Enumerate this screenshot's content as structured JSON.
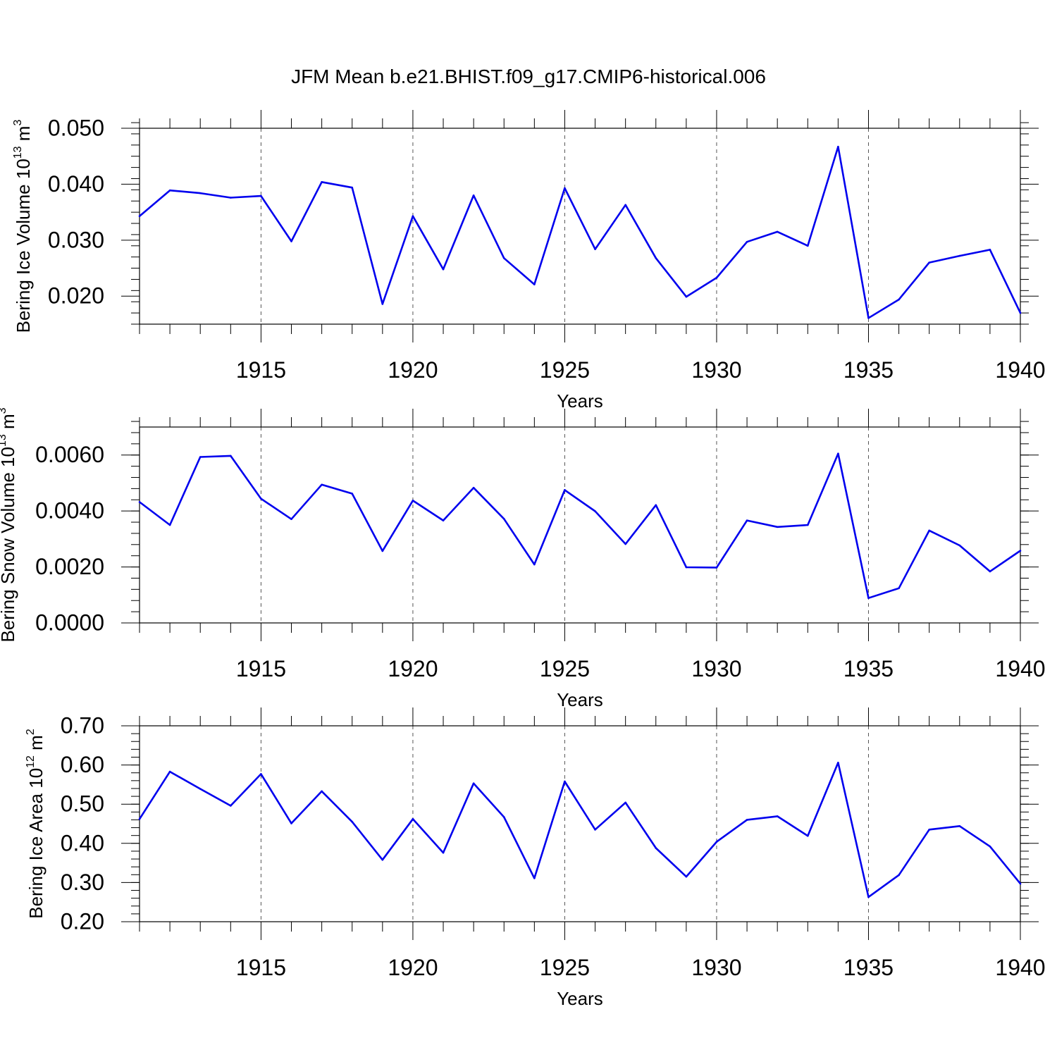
{
  "title": "JFM Mean b.e21.BHIST.f09_g17.CMIP6-historical.006",
  "chart_data": [
    {
      "type": "line",
      "ylabel": "Bering Ice Volume 10",
      "ylabel_sup": "13",
      "ylabel_unit": " m",
      "ylabel_unit_sup": "3",
      "xlabel": "Years",
      "xlim": [
        1911,
        1940
      ],
      "ylim": [
        0.015,
        0.05
      ],
      "yticks": [
        0.02,
        0.03,
        0.04,
        0.05
      ],
      "ytick_labels": [
        "0.020",
        "0.030",
        "0.040",
        "0.050"
      ],
      "yminor_step": 0.002,
      "xticks": [
        1915,
        1920,
        1925,
        1930,
        1935,
        1940
      ],
      "xtick_labels": [
        "1915",
        "1920",
        "1925",
        "1930",
        "1935",
        "1940"
      ],
      "x": [
        1911,
        1912,
        1913,
        1914,
        1915,
        1916,
        1917,
        1918,
        1919,
        1920,
        1921,
        1922,
        1923,
        1924,
        1925,
        1926,
        1927,
        1928,
        1929,
        1930,
        1931,
        1932,
        1933,
        1934,
        1935,
        1936,
        1937,
        1938,
        1939,
        1940
      ],
      "series": [
        {
          "color": "#0000ee",
          "values": [
            0.0343,
            0.0389,
            0.0384,
            0.0376,
            0.0379,
            0.0298,
            0.0404,
            0.0394,
            0.0186,
            0.0343,
            0.0248,
            0.038,
            0.0268,
            0.0221,
            0.0393,
            0.0284,
            0.0363,
            0.0268,
            0.0199,
            0.0233,
            0.0297,
            0.0315,
            0.029,
            0.0467,
            0.0161,
            0.0194,
            0.026,
            0.0272,
            0.0283,
            0.017
          ]
        }
      ]
    },
    {
      "type": "line",
      "ylabel": "Bering Snow Volume 10",
      "ylabel_sup": "13",
      "ylabel_unit": " m",
      "ylabel_unit_sup": "3",
      "xlabel": "Years",
      "xlim": [
        1911,
        1940
      ],
      "ylim": [
        0.0,
        0.007
      ],
      "yticks": [
        0.0,
        0.002,
        0.004,
        0.006
      ],
      "ytick_labels": [
        "0.0000",
        "0.0020",
        "0.0040",
        "0.0060"
      ],
      "yminor_step": 0.0004,
      "xticks": [
        1915,
        1920,
        1925,
        1930,
        1935,
        1940
      ],
      "xtick_labels": [
        "1915",
        "1920",
        "1925",
        "1930",
        "1935",
        "1940"
      ],
      "x": [
        1911,
        1912,
        1913,
        1914,
        1915,
        1916,
        1917,
        1918,
        1919,
        1920,
        1921,
        1922,
        1923,
        1924,
        1925,
        1926,
        1927,
        1928,
        1929,
        1930,
        1931,
        1932,
        1933,
        1934,
        1935,
        1936,
        1937,
        1938,
        1939,
        1940
      ],
      "series": [
        {
          "color": "#0000ee",
          "values": [
            0.00432,
            0.0035,
            0.00593,
            0.00597,
            0.00444,
            0.00371,
            0.00494,
            0.00462,
            0.00257,
            0.00437,
            0.00366,
            0.00483,
            0.00372,
            0.00209,
            0.00475,
            0.00399,
            0.00282,
            0.00421,
            0.00199,
            0.00198,
            0.00366,
            0.00343,
            0.0035,
            0.00605,
            0.00089,
            0.00124,
            0.0033,
            0.00277,
            0.00184,
            0.00258
          ]
        }
      ]
    },
    {
      "type": "line",
      "ylabel": "Bering Ice Area 10",
      "ylabel_sup": "12",
      "ylabel_unit": " m",
      "ylabel_unit_sup": "2",
      "xlabel": "Years",
      "xlim": [
        1911,
        1940
      ],
      "ylim": [
        0.2,
        0.7
      ],
      "yticks": [
        0.2,
        0.3,
        0.4,
        0.5,
        0.6,
        0.7
      ],
      "ytick_labels": [
        "0.20",
        "0.30",
        "0.40",
        "0.50",
        "0.60",
        "0.70"
      ],
      "yminor_step": 0.02,
      "xticks": [
        1915,
        1920,
        1925,
        1930,
        1935,
        1940
      ],
      "xtick_labels": [
        "1915",
        "1920",
        "1925",
        "1930",
        "1935",
        "1940"
      ],
      "x": [
        1911,
        1912,
        1913,
        1914,
        1915,
        1916,
        1917,
        1918,
        1919,
        1920,
        1921,
        1922,
        1923,
        1924,
        1925,
        1926,
        1927,
        1928,
        1929,
        1930,
        1931,
        1932,
        1933,
        1934,
        1935,
        1936,
        1937,
        1938,
        1939,
        1940
      ],
      "series": [
        {
          "color": "#0000ee",
          "values": [
            0.462,
            0.583,
            0.539,
            0.496,
            0.577,
            0.451,
            0.533,
            0.455,
            0.358,
            0.462,
            0.376,
            0.553,
            0.467,
            0.311,
            0.558,
            0.435,
            0.504,
            0.388,
            0.315,
            0.404,
            0.46,
            0.469,
            0.419,
            0.606,
            0.263,
            0.319,
            0.435,
            0.444,
            0.392,
            0.297
          ]
        }
      ]
    }
  ]
}
